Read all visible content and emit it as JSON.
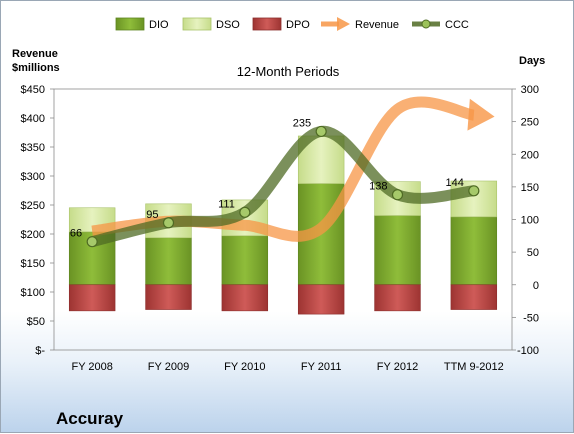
{
  "chart_data": {
    "type": "bar",
    "title": "12-Month Periods",
    "company": "Accuray",
    "categories": [
      "FY 2008",
      "FY 2009",
      "FY 2010",
      "FY 2011",
      "FY 2012",
      "TTM 9-2012"
    ],
    "left_axis": {
      "label_line1": "Revenue",
      "label_line2": "$millions",
      "ticks": [
        "$450",
        "$400",
        "$350",
        "$300",
        "$250",
        "$200",
        "$150",
        "$100",
        "$50",
        "$-"
      ],
      "ylim": [
        0,
        450
      ]
    },
    "right_axis": {
      "label": "Days",
      "ticks": [
        "300",
        "250",
        "200",
        "150",
        "100",
        "50",
        "0",
        "-50",
        "-100"
      ],
      "ylim": [
        -100,
        300
      ]
    },
    "series": [
      {
        "name": "DIO",
        "type": "bar",
        "color": "#7eaa2e",
        "values": [
          81,
          72,
          75,
          155,
          106,
          104
        ]
      },
      {
        "name": "DSO",
        "type": "bar",
        "color": "#d6e8a2",
        "values": [
          37,
          52,
          55,
          73,
          52,
          55
        ]
      },
      {
        "name": "DPO",
        "type": "bar",
        "color": "#c0504d",
        "values": [
          -40,
          -38,
          -40,
          -45,
          -40,
          -38
        ]
      },
      {
        "name": "Revenue",
        "type": "line",
        "color": "#f79646",
        "values": [
          205,
          222,
          215,
          210,
          415,
          405
        ]
      },
      {
        "name": "CCC",
        "type": "line",
        "color": "#5a7a2a",
        "values": [
          66,
          95,
          111,
          235,
          138,
          144
        ]
      }
    ],
    "data_labels": [
      "66",
      "95",
      "111",
      "235",
      "138",
      "144"
    ],
    "legend": [
      "DIO",
      "DSO",
      "DPO",
      "Revenue",
      "CCC"
    ],
    "legend_position": "top",
    "grid": false
  }
}
